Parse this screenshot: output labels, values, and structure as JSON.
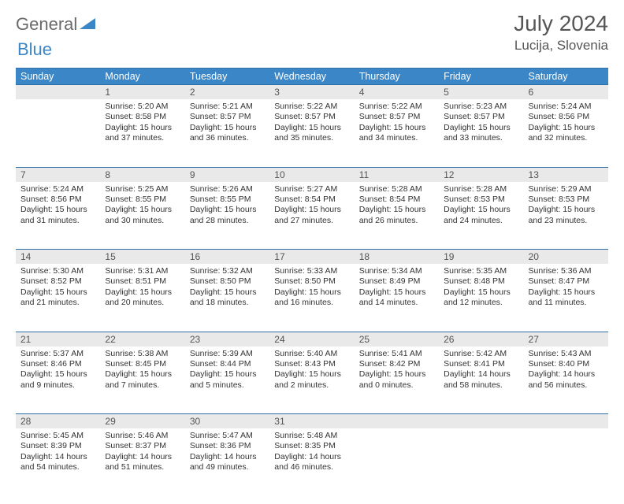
{
  "brand": {
    "part1": "General",
    "part2": "Blue"
  },
  "title": {
    "month": "July 2024",
    "location": "Lucija, Slovenia"
  },
  "colors": {
    "header_bg": "#3b86c6",
    "header_border": "#2f6fa8",
    "daynum_bg": "#e9e9e9",
    "text": "#333333",
    "muted": "#565656"
  },
  "daysOfWeek": [
    "Sunday",
    "Monday",
    "Tuesday",
    "Wednesday",
    "Thursday",
    "Friday",
    "Saturday"
  ],
  "weeks": [
    {
      "nums": [
        "",
        "1",
        "2",
        "3",
        "4",
        "5",
        "6"
      ],
      "cells": [
        null,
        {
          "sunrise": "5:20 AM",
          "sunset": "8:58 PM",
          "daylight": "15 hours and 37 minutes."
        },
        {
          "sunrise": "5:21 AM",
          "sunset": "8:57 PM",
          "daylight": "15 hours and 36 minutes."
        },
        {
          "sunrise": "5:22 AM",
          "sunset": "8:57 PM",
          "daylight": "15 hours and 35 minutes."
        },
        {
          "sunrise": "5:22 AM",
          "sunset": "8:57 PM",
          "daylight": "15 hours and 34 minutes."
        },
        {
          "sunrise": "5:23 AM",
          "sunset": "8:57 PM",
          "daylight": "15 hours and 33 minutes."
        },
        {
          "sunrise": "5:24 AM",
          "sunset": "8:56 PM",
          "daylight": "15 hours and 32 minutes."
        }
      ]
    },
    {
      "nums": [
        "7",
        "8",
        "9",
        "10",
        "11",
        "12",
        "13"
      ],
      "cells": [
        {
          "sunrise": "5:24 AM",
          "sunset": "8:56 PM",
          "daylight": "15 hours and 31 minutes."
        },
        {
          "sunrise": "5:25 AM",
          "sunset": "8:55 PM",
          "daylight": "15 hours and 30 minutes."
        },
        {
          "sunrise": "5:26 AM",
          "sunset": "8:55 PM",
          "daylight": "15 hours and 28 minutes."
        },
        {
          "sunrise": "5:27 AM",
          "sunset": "8:54 PM",
          "daylight": "15 hours and 27 minutes."
        },
        {
          "sunrise": "5:28 AM",
          "sunset": "8:54 PM",
          "daylight": "15 hours and 26 minutes."
        },
        {
          "sunrise": "5:28 AM",
          "sunset": "8:53 PM",
          "daylight": "15 hours and 24 minutes."
        },
        {
          "sunrise": "5:29 AM",
          "sunset": "8:53 PM",
          "daylight": "15 hours and 23 minutes."
        }
      ]
    },
    {
      "nums": [
        "14",
        "15",
        "16",
        "17",
        "18",
        "19",
        "20"
      ],
      "cells": [
        {
          "sunrise": "5:30 AM",
          "sunset": "8:52 PM",
          "daylight": "15 hours and 21 minutes."
        },
        {
          "sunrise": "5:31 AM",
          "sunset": "8:51 PM",
          "daylight": "15 hours and 20 minutes."
        },
        {
          "sunrise": "5:32 AM",
          "sunset": "8:50 PM",
          "daylight": "15 hours and 18 minutes."
        },
        {
          "sunrise": "5:33 AM",
          "sunset": "8:50 PM",
          "daylight": "15 hours and 16 minutes."
        },
        {
          "sunrise": "5:34 AM",
          "sunset": "8:49 PM",
          "daylight": "15 hours and 14 minutes."
        },
        {
          "sunrise": "5:35 AM",
          "sunset": "8:48 PM",
          "daylight": "15 hours and 12 minutes."
        },
        {
          "sunrise": "5:36 AM",
          "sunset": "8:47 PM",
          "daylight": "15 hours and 11 minutes."
        }
      ]
    },
    {
      "nums": [
        "21",
        "22",
        "23",
        "24",
        "25",
        "26",
        "27"
      ],
      "cells": [
        {
          "sunrise": "5:37 AM",
          "sunset": "8:46 PM",
          "daylight": "15 hours and 9 minutes."
        },
        {
          "sunrise": "5:38 AM",
          "sunset": "8:45 PM",
          "daylight": "15 hours and 7 minutes."
        },
        {
          "sunrise": "5:39 AM",
          "sunset": "8:44 PM",
          "daylight": "15 hours and 5 minutes."
        },
        {
          "sunrise": "5:40 AM",
          "sunset": "8:43 PM",
          "daylight": "15 hours and 2 minutes."
        },
        {
          "sunrise": "5:41 AM",
          "sunset": "8:42 PM",
          "daylight": "15 hours and 0 minutes."
        },
        {
          "sunrise": "5:42 AM",
          "sunset": "8:41 PM",
          "daylight": "14 hours and 58 minutes."
        },
        {
          "sunrise": "5:43 AM",
          "sunset": "8:40 PM",
          "daylight": "14 hours and 56 minutes."
        }
      ]
    },
    {
      "nums": [
        "28",
        "29",
        "30",
        "31",
        "",
        "",
        ""
      ],
      "cells": [
        {
          "sunrise": "5:45 AM",
          "sunset": "8:39 PM",
          "daylight": "14 hours and 54 minutes."
        },
        {
          "sunrise": "5:46 AM",
          "sunset": "8:37 PM",
          "daylight": "14 hours and 51 minutes."
        },
        {
          "sunrise": "5:47 AM",
          "sunset": "8:36 PM",
          "daylight": "14 hours and 49 minutes."
        },
        {
          "sunrise": "5:48 AM",
          "sunset": "8:35 PM",
          "daylight": "14 hours and 46 minutes."
        },
        null,
        null,
        null
      ]
    }
  ],
  "labels": {
    "sunrise": "Sunrise:",
    "sunset": "Sunset:",
    "daylight": "Daylight:"
  }
}
